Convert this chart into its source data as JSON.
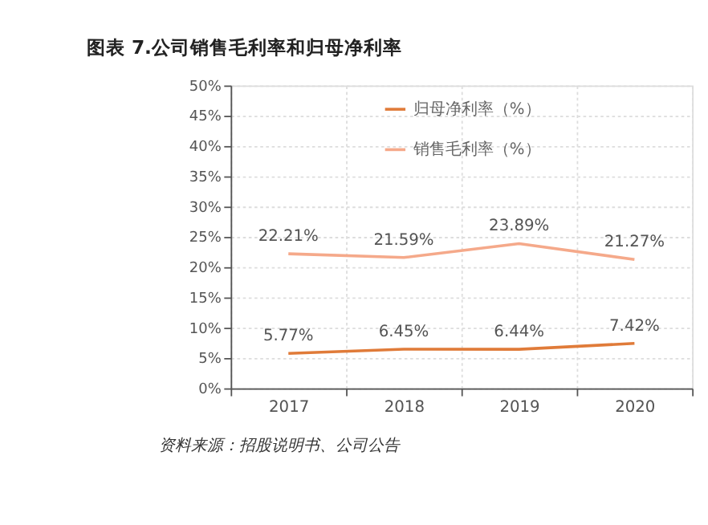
{
  "chart_data": {
    "type": "line",
    "title": "图表 7.公司销售毛利率和归母净利率",
    "categories": [
      "2017",
      "2018",
      "2019",
      "2020"
    ],
    "series": [
      {
        "name": "归母净利率（%）",
        "color": "#e07b39",
        "values": [
          5.77,
          6.45,
          6.44,
          7.42
        ]
      },
      {
        "name": "销售毛利率（%）",
        "color": "#f5a98a",
        "values": [
          22.21,
          21.59,
          23.89,
          21.27
        ]
      }
    ],
    "value_labels": [
      [
        "5.77%",
        "6.45%",
        "6.44%",
        "7.42%"
      ],
      [
        "22.21%",
        "21.59%",
        "23.89%",
        "21.27%"
      ]
    ],
    "ylim": [
      0,
      50
    ],
    "yticks": [
      {
        "value": 0,
        "label": "0%"
      },
      {
        "value": 5,
        "label": "5%"
      },
      {
        "value": 10,
        "label": "10%"
      },
      {
        "value": 15,
        "label": "15%"
      },
      {
        "value": 20,
        "label": "20%"
      },
      {
        "value": 25,
        "label": "25%"
      },
      {
        "value": 30,
        "label": "30%"
      },
      {
        "value": 35,
        "label": "35%"
      },
      {
        "value": 40,
        "label": "40%"
      },
      {
        "value": 45,
        "label": "45%"
      },
      {
        "value": 50,
        "label": "50%"
      }
    ],
    "grid": true,
    "legend": "top",
    "marker": "none",
    "line_style": "solid",
    "annotations": [
      "资料来源：招股说明书、公司公告"
    ]
  }
}
